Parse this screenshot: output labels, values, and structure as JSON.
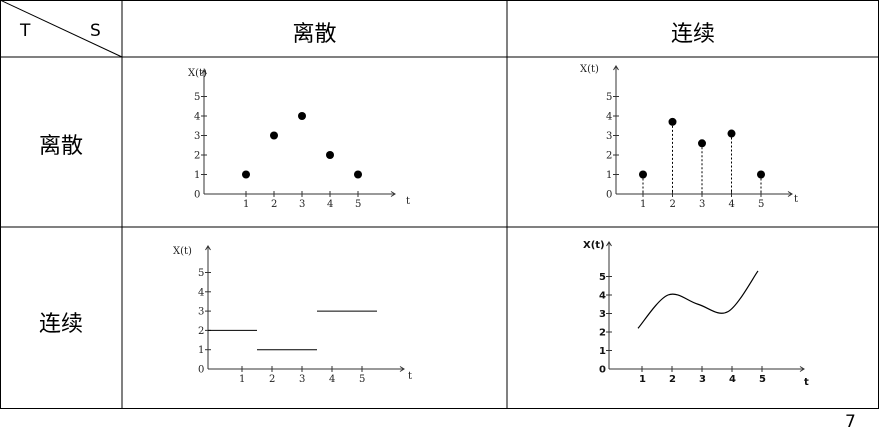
{
  "table": {
    "corner_row_label": "T",
    "corner_col_label": "S",
    "col_headers": [
      "离散",
      "连续"
    ],
    "row_headers": [
      "离散",
      "连续"
    ]
  },
  "page_number": "7",
  "chart_data": [
    {
      "type": "scatter",
      "title": "",
      "xlabel": "t",
      "ylabel": "X(t)",
      "x_ticks": [
        "1",
        "2",
        "3",
        "4",
        "5"
      ],
      "y_ticks": [
        "0",
        "1",
        "2",
        "3",
        "4",
        "5"
      ],
      "x": [
        1,
        2,
        3,
        4,
        5
      ],
      "y": [
        1,
        3,
        4,
        2,
        1
      ],
      "xlim": [
        0,
        5.5
      ],
      "ylim": [
        0,
        5
      ]
    },
    {
      "type": "scatter",
      "title": "",
      "xlabel": "t",
      "ylabel": "X(t)",
      "x_ticks": [
        "1",
        "2",
        "3",
        "4",
        "5"
      ],
      "y_ticks": [
        "0",
        "1",
        "2",
        "3",
        "4",
        "5"
      ],
      "x": [
        1,
        2,
        3,
        4,
        5
      ],
      "y": [
        1,
        3.7,
        2.6,
        3.1,
        1
      ],
      "stems": true,
      "xlim": [
        0,
        5.5
      ],
      "ylim": [
        0,
        5
      ]
    },
    {
      "type": "line",
      "title": "",
      "xlabel": "t",
      "ylabel": "X(t)",
      "x_ticks": [
        "1",
        "2",
        "3",
        "4",
        "5"
      ],
      "y_ticks": [
        "0",
        "1",
        "2",
        "3",
        "4",
        "5"
      ],
      "steps": [
        {
          "x_start": 0,
          "x_end": 1.5,
          "y": 2
        },
        {
          "x_start": 1.5,
          "x_end": 3.5,
          "y": 1
        },
        {
          "x_start": 3.5,
          "x_end": 5.5,
          "y": 3
        }
      ],
      "xlim": [
        0,
        5.5
      ],
      "ylim": [
        0,
        5
      ]
    },
    {
      "type": "line",
      "title": "",
      "xlabel": "t",
      "ylabel": "X(t)",
      "x_ticks": [
        "1",
        "2",
        "3",
        "4",
        "5"
      ],
      "y_ticks": [
        "0",
        "1",
        "2",
        "3",
        "4",
        "5"
      ],
      "x": [
        1,
        2,
        3,
        4,
        5
      ],
      "y": [
        2.2,
        4.0,
        3.5,
        3.1,
        5.3
      ],
      "smooth": true,
      "xlim": [
        0,
        5.5
      ],
      "ylim": [
        0,
        5
      ]
    }
  ]
}
